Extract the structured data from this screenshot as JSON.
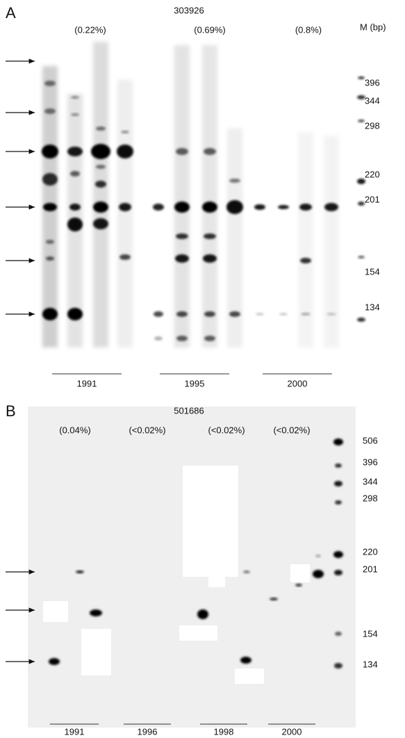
{
  "panel_a": {
    "label": "A",
    "sample": "303926",
    "percentages": [
      "(0.22%)",
      "(0.69%)",
      "(0.8%)"
    ],
    "marker_header": "M (bp)",
    "markers": [
      "396",
      "344",
      "298",
      "220",
      "201",
      "154",
      "134"
    ],
    "years": [
      "1991",
      "1995",
      "2000"
    ]
  },
  "panel_b": {
    "label": "B",
    "sample": "501686",
    "percentages": [
      "(0.04%)",
      "(<0.02%)",
      "(<0.02%)",
      "(<0.02%)"
    ],
    "markers": [
      "506",
      "396",
      "344",
      "298",
      "220",
      "201",
      "154",
      "134"
    ],
    "years": [
      "1991",
      "1996",
      "1998",
      "2000"
    ]
  }
}
